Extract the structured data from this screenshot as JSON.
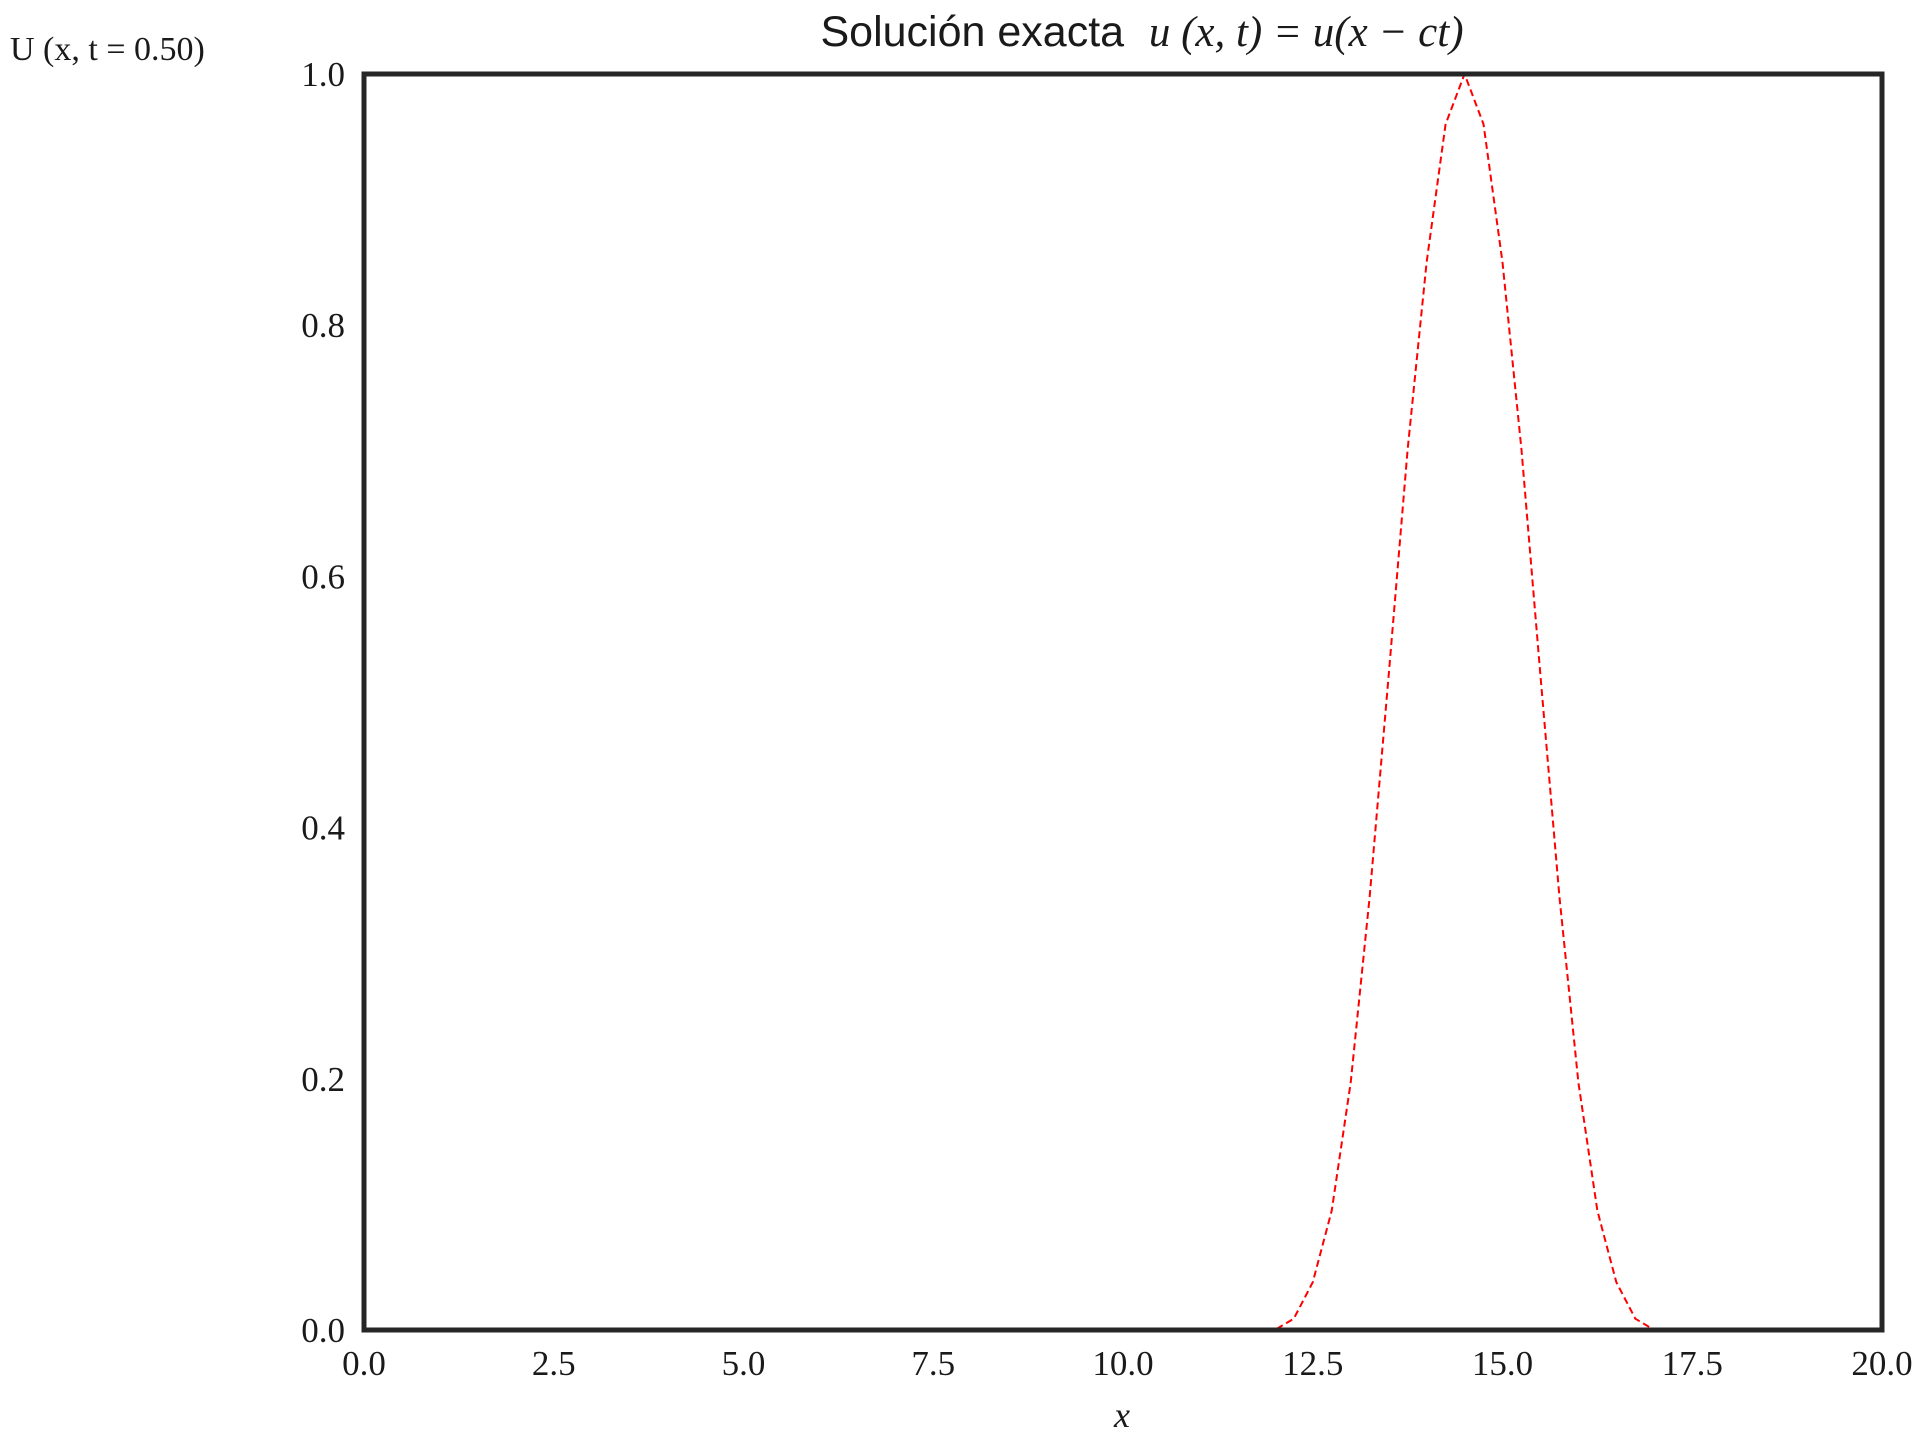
{
  "chart_data": {
    "type": "line",
    "title_text": "Solución exacta",
    "title_math": "u (x, t) = u(x − ct)",
    "ylabel": "U (x, t = 0.50)",
    "xlabel": "x",
    "xlim": [
      0.0,
      20.0
    ],
    "ylim": [
      0.0,
      1.0
    ],
    "xticks": [
      "0.0",
      "2.5",
      "5.0",
      "7.5",
      "10.0",
      "12.5",
      "15.0",
      "17.5",
      "20.0"
    ],
    "yticks": [
      "0.0",
      "0.2",
      "0.4",
      "0.6",
      "0.8",
      "1.0"
    ],
    "grid": false,
    "series": [
      {
        "line_style": "dashed",
        "color": "#ff0000",
        "x": [
          0.0,
          12.0,
          12.25,
          12.5,
          12.75,
          13.0,
          13.25,
          13.5,
          13.75,
          14.0,
          14.25,
          14.5,
          14.75,
          15.0,
          15.25,
          15.5,
          15.75,
          16.0,
          16.25,
          16.5,
          16.75,
          17.0,
          20.0
        ],
        "y": [
          0.0,
          0.0,
          0.009,
          0.038,
          0.095,
          0.197,
          0.345,
          0.521,
          0.701,
          0.85,
          0.96,
          1.0,
          0.96,
          0.85,
          0.701,
          0.521,
          0.345,
          0.197,
          0.095,
          0.038,
          0.009,
          0.0,
          0.0
        ]
      }
    ]
  }
}
